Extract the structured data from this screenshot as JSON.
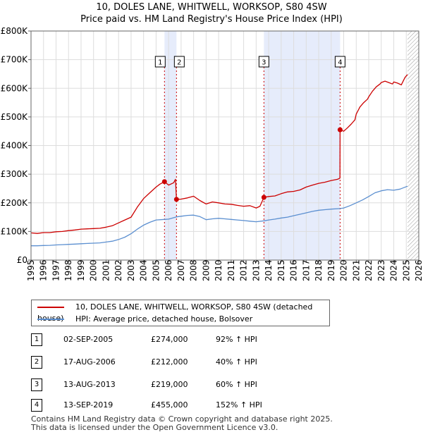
{
  "title_line1": "10, DOLES LANE, WHITWELL, WORKSOP, S80 4SW",
  "title_line2": "Price paid vs. HM Land Registry's House Price Index (HPI)",
  "chart_data": {
    "type": "line",
    "xlim": [
      1995,
      2026
    ],
    "ylim": [
      0,
      800000
    ],
    "yticks": [
      0,
      100000,
      200000,
      300000,
      400000,
      500000,
      600000,
      700000,
      800000
    ],
    "ytick_labels": [
      "£0",
      "£100K",
      "£200K",
      "£300K",
      "£400K",
      "£500K",
      "£600K",
      "£700K",
      "£800K"
    ],
    "xticks": [
      1995,
      1996,
      1997,
      1998,
      1999,
      2000,
      2001,
      2002,
      2003,
      2004,
      2005,
      2006,
      2007,
      2008,
      2009,
      2010,
      2011,
      2012,
      2013,
      2014,
      2015,
      2016,
      2017,
      2018,
      2019,
      2020,
      2021,
      2022,
      2023,
      2024,
      2025,
      2026
    ],
    "grid": true,
    "shaded_ranges": [
      [
        2005.67,
        2006.63
      ],
      [
        2013.62,
        2019.71
      ]
    ],
    "hatched_from": 2025.1,
    "series": [
      {
        "name": "10, DOLES LANE, WHITWELL, WORKSOP, S80 4SW (detached house)",
        "color": "#cc0000",
        "x": [
          1995,
          1995.5,
          1996,
          1996.5,
          1997,
          1997.5,
          1998,
          1998.5,
          1999,
          1999.5,
          2000,
          2000.5,
          2001,
          2001.5,
          2002,
          2002.5,
          2003,
          2003.5,
          2004,
          2004.5,
          2005,
          2005.3,
          2005.67,
          2006,
          2006.4,
          2006.55,
          2006.63,
          2007,
          2007.5,
          2008,
          2008.5,
          2009,
          2009.5,
          2010,
          2010.5,
          2011,
          2011.5,
          2012,
          2012.5,
          2013,
          2013.3,
          2013.62,
          2014,
          2014.5,
          2015,
          2015.5,
          2016,
          2016.5,
          2017,
          2017.5,
          2018,
          2018.5,
          2019,
          2019.5,
          2019.7,
          2019.71,
          2020,
          2020.3,
          2020.6,
          2020.9,
          2021,
          2021.3,
          2021.6,
          2021.9,
          2022,
          2022.3,
          2022.6,
          2022.9,
          2023,
          2023.3,
          2023.6,
          2023.9,
          2024,
          2024.3,
          2024.6,
          2024.9,
          2025.1
        ],
        "values": [
          95000,
          93000,
          96000,
          96000,
          99000,
          100000,
          103000,
          105000,
          108000,
          109000,
          110000,
          111000,
          115000,
          120000,
          130000,
          140000,
          150000,
          185000,
          215000,
          235000,
          255000,
          265000,
          274000,
          262000,
          270000,
          282000,
          212000,
          213000,
          217000,
          223000,
          208000,
          196000,
          203000,
          200000,
          196000,
          195000,
          191000,
          188000,
          190000,
          182000,
          188000,
          219000,
          222000,
          224000,
          232000,
          238000,
          240000,
          245000,
          255000,
          262000,
          268000,
          272000,
          278000,
          282000,
          286000,
          455000,
          450000,
          462000,
          475000,
          490000,
          510000,
          535000,
          550000,
          562000,
          570000,
          590000,
          605000,
          615000,
          620000,
          625000,
          620000,
          615000,
          622000,
          618000,
          612000,
          638000,
          648000
        ]
      },
      {
        "name": "HPI: Average price, detached house, Bolsover",
        "color": "#5b8fd0",
        "x": [
          1995,
          1995.5,
          1996,
          1996.5,
          1997,
          1997.5,
          1998,
          1998.5,
          1999,
          1999.5,
          2000,
          2000.5,
          2001,
          2001.5,
          2002,
          2002.5,
          2003,
          2003.5,
          2004,
          2004.5,
          2005,
          2005.67,
          2006,
          2006.63,
          2007,
          2007.5,
          2008,
          2008.5,
          2009,
          2009.5,
          2010,
          2010.5,
          2011,
          2011.5,
          2012,
          2012.5,
          2013,
          2013.62,
          2014,
          2014.5,
          2015,
          2015.5,
          2016,
          2016.5,
          2017,
          2017.5,
          2018,
          2018.5,
          2019,
          2019.71,
          2020,
          2020.5,
          2021,
          2021.5,
          2022,
          2022.5,
          2023,
          2023.5,
          2024,
          2024.5,
          2025.1
        ],
        "values": [
          50000,
          50000,
          51000,
          51500,
          53000,
          54000,
          55000,
          56000,
          57000,
          58000,
          59000,
          60000,
          63000,
          66000,
          72000,
          80000,
          92000,
          108000,
          122000,
          132000,
          140000,
          142000,
          143000,
          151000,
          153000,
          156000,
          157000,
          152000,
          141000,
          144000,
          146000,
          144000,
          142000,
          140000,
          138000,
          136000,
          134000,
          137000,
          140000,
          143000,
          147000,
          150000,
          155000,
          160000,
          165000,
          170000,
          174000,
          176000,
          178000,
          180000,
          182000,
          190000,
          200000,
          210000,
          222000,
          235000,
          242000,
          246000,
          244000,
          248000,
          258000
        ]
      }
    ],
    "markers": [
      {
        "label": "1",
        "x": 2005.67,
        "y": 274000
      },
      {
        "label": "2",
        "x": 2006.63,
        "y": 212000
      },
      {
        "label": "3",
        "x": 2013.62,
        "y": 219000
      },
      {
        "label": "4",
        "x": 2019.71,
        "y": 455000
      }
    ]
  },
  "legend": {
    "red_label": "10, DOLES LANE, WHITWELL, WORKSOP, S80 4SW (detached house)",
    "blue_label": "HPI: Average price, detached house, Bolsover"
  },
  "transactions": [
    {
      "num": "1",
      "date": "02-SEP-2005",
      "price": "£274,000",
      "hpi": "92% ↑ HPI"
    },
    {
      "num": "2",
      "date": "17-AUG-2006",
      "price": "£212,000",
      "hpi": "40% ↑ HPI"
    },
    {
      "num": "3",
      "date": "13-AUG-2013",
      "price": "£219,000",
      "hpi": "60% ↑ HPI"
    },
    {
      "num": "4",
      "date": "13-SEP-2019",
      "price": "£455,000",
      "hpi": "152% ↑ HPI"
    }
  ],
  "footer_line1": "Contains HM Land Registry data © Crown copyright and database right 2025.",
  "footer_line2": "This data is licensed under the Open Government Licence v3.0."
}
